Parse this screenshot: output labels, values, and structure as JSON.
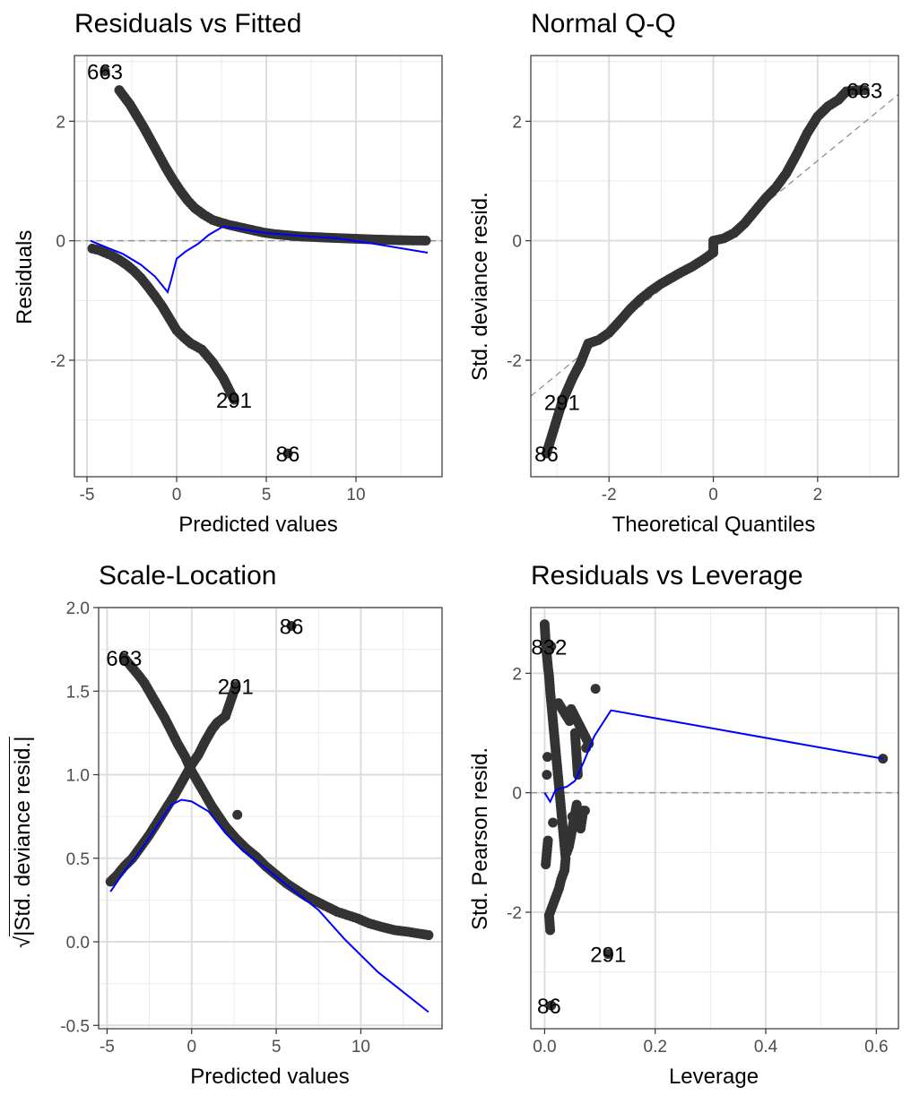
{
  "chart_data": [
    {
      "type": "scatter",
      "title": "Residuals vs Fitted",
      "xlabel": "Predicted values",
      "ylabel": "Residuals",
      "xlim": [
        -5.7,
        14.8
      ],
      "ylim": [
        -3.95,
        3.1
      ],
      "xticks": [
        -5,
        0,
        5,
        10
      ],
      "yticks": [
        -2,
        0,
        2
      ],
      "grid": true,
      "reference_line": {
        "type": "hline",
        "y": 0,
        "style": "dashed"
      },
      "series": [
        {
          "values": [
            [
              -4.7,
              -0.13
            ],
            [
              -4.3,
              -0.16
            ],
            [
              -4.0,
              -0.2
            ],
            [
              -3.6,
              -0.25
            ],
            [
              -3.2,
              -0.32
            ],
            [
              -2.8,
              -0.4
            ],
            [
              -2.4,
              -0.5
            ],
            [
              -2.0,
              -0.62
            ],
            [
              -1.6,
              -0.77
            ],
            [
              -1.2,
              -0.93
            ],
            [
              -0.8,
              -1.1
            ],
            [
              -0.4,
              -1.3
            ],
            [
              0.0,
              -1.5
            ],
            [
              0.4,
              -1.62
            ],
            [
              0.8,
              -1.72
            ],
            [
              1.4,
              -1.82
            ],
            [
              2.0,
              -2.03
            ],
            [
              2.6,
              -2.3
            ],
            [
              3.2,
              -2.66
            ],
            [
              6.2,
              -3.56
            ]
          ]
        },
        {
          "values": [
            [
              -3.2,
              2.52
            ],
            [
              -3.0,
              2.44
            ],
            [
              -2.6,
              2.28
            ],
            [
              -2.2,
              2.08
            ],
            [
              -1.8,
              1.88
            ],
            [
              -1.4,
              1.66
            ],
            [
              -1.0,
              1.44
            ],
            [
              -0.6,
              1.22
            ],
            [
              -0.2,
              1.02
            ],
            [
              0.2,
              0.84
            ],
            [
              0.6,
              0.68
            ],
            [
              1.0,
              0.55
            ],
            [
              1.5,
              0.44
            ],
            [
              2.0,
              0.35
            ],
            [
              2.5,
              0.3
            ],
            [
              3.0,
              0.26
            ],
            [
              3.6,
              0.22
            ],
            [
              4.2,
              0.18
            ],
            [
              4.8,
              0.14
            ],
            [
              5.5,
              0.11
            ],
            [
              6.2,
              0.09
            ],
            [
              7.0,
              0.07
            ],
            [
              7.8,
              0.06
            ],
            [
              8.6,
              0.05
            ],
            [
              9.4,
              0.04
            ],
            [
              10.2,
              0.03
            ],
            [
              11.2,
              0.02
            ],
            [
              12.3,
              0.01
            ],
            [
              13.2,
              0.005
            ],
            [
              13.9,
              0.003
            ],
            [
              -4.0,
              2.84
            ]
          ]
        },
        {
          "name": "smooth",
          "color": "#0000ff",
          "values": [
            [
              -4.8,
              0.0
            ],
            [
              -4.0,
              -0.1
            ],
            [
              -3.0,
              -0.22
            ],
            [
              -2.0,
              -0.4
            ],
            [
              -1.2,
              -0.6
            ],
            [
              -0.5,
              -0.86
            ],
            [
              -0.3,
              -0.65
            ],
            [
              0.0,
              -0.3
            ],
            [
              0.5,
              -0.18
            ],
            [
              1.2,
              -0.05
            ],
            [
              1.8,
              0.1
            ],
            [
              2.6,
              0.24
            ],
            [
              3.5,
              0.2
            ],
            [
              5.0,
              0.13
            ],
            [
              7.0,
              0.08
            ],
            [
              9.0,
              0.04
            ],
            [
              11.0,
              -0.05
            ],
            [
              14.0,
              -0.2
            ]
          ]
        }
      ],
      "labels": [
        {
          "text": "663",
          "x": -4.0,
          "y": 2.84
        },
        {
          "text": "291",
          "x": 3.2,
          "y": -2.66
        },
        {
          "text": "86",
          "x": 6.2,
          "y": -3.56
        }
      ]
    },
    {
      "type": "scatter",
      "title": "Normal Q-Q",
      "xlabel": "Theoretical Quantiles",
      "ylabel": "Std. deviance resid.",
      "xlim": [
        -3.5,
        3.55
      ],
      "ylim": [
        -3.95,
        3.1
      ],
      "xticks": [
        -2,
        0,
        2
      ],
      "yticks": [
        -2,
        0,
        2
      ],
      "grid": true,
      "reference_line": {
        "type": "abline",
        "points": [
          [
            -3.5,
            -2.6
          ],
          [
            3.55,
            2.45
          ]
        ],
        "style": "dashed"
      },
      "series": [
        {
          "values": [
            [
              -3.2,
              -3.56
            ],
            [
              -2.9,
              -2.7
            ],
            [
              -2.7,
              -2.3
            ],
            [
              -2.55,
              -2.05
            ],
            [
              -2.4,
              -1.72
            ],
            [
              -2.2,
              -1.66
            ],
            [
              -2.0,
              -1.54
            ],
            [
              -1.8,
              -1.35
            ],
            [
              -1.6,
              -1.15
            ],
            [
              -1.4,
              -0.98
            ],
            [
              -1.2,
              -0.84
            ],
            [
              -1.0,
              -0.72
            ],
            [
              -0.8,
              -0.62
            ],
            [
              -0.6,
              -0.52
            ],
            [
              -0.4,
              -0.43
            ],
            [
              -0.2,
              -0.32
            ],
            [
              0.0,
              -0.2
            ],
            [
              0.0,
              0.0
            ],
            [
              0.2,
              0.04
            ],
            [
              0.4,
              0.13
            ],
            [
              0.6,
              0.29
            ],
            [
              0.8,
              0.5
            ],
            [
              1.0,
              0.71
            ],
            [
              1.2,
              0.89
            ],
            [
              1.4,
              1.13
            ],
            [
              1.6,
              1.45
            ],
            [
              1.8,
              1.8
            ],
            [
              2.0,
              2.08
            ],
            [
              2.2,
              2.25
            ],
            [
              2.4,
              2.36
            ],
            [
              2.55,
              2.5
            ],
            [
              2.75,
              2.52
            ],
            [
              2.9,
              2.52
            ]
          ]
        }
      ],
      "labels": [
        {
          "text": "663",
          "x": 2.9,
          "y": 2.52
        },
        {
          "text": "291",
          "x": -2.9,
          "y": -2.7
        },
        {
          "text": "86",
          "x": -3.2,
          "y": -3.56
        }
      ]
    },
    {
      "type": "scatter",
      "title": "Scale-Location",
      "xlabel": "Predicted values",
      "ylabel_sqrt": "|Std. deviance resid.|",
      "xlim": [
        -5.5,
        14.8
      ],
      "ylim": [
        -0.52,
        2.0
      ],
      "xticks": [
        -5,
        0,
        5,
        10
      ],
      "yticks": [
        -0.5,
        0.0,
        0.5,
        1.0,
        1.5,
        2.0
      ],
      "grid": true,
      "series": [
        {
          "values": [
            [
              -4.8,
              0.36
            ],
            [
              -4.4,
              0.4
            ],
            [
              -4.0,
              0.45
            ],
            [
              -3.5,
              0.5
            ],
            [
              -3.0,
              0.57
            ],
            [
              -2.5,
              0.64
            ],
            [
              -2.0,
              0.72
            ],
            [
              -1.5,
              0.8
            ],
            [
              -1.0,
              0.88
            ],
            [
              -0.5,
              0.97
            ],
            [
              0.0,
              1.06
            ],
            [
              0.4,
              1.12
            ],
            [
              0.8,
              1.2
            ],
            [
              1.2,
              1.27
            ],
            [
              1.5,
              1.31
            ],
            [
              2.0,
              1.35
            ],
            [
              2.6,
              1.53
            ],
            [
              5.9,
              1.89
            ]
          ]
        },
        {
          "values": [
            [
              -4.0,
              1.7
            ],
            [
              -3.1,
              1.59
            ],
            [
              -2.8,
              1.55
            ],
            [
              -2.4,
              1.48
            ],
            [
              -2.0,
              1.41
            ],
            [
              -1.6,
              1.34
            ],
            [
              -1.2,
              1.26
            ],
            [
              -0.8,
              1.18
            ],
            [
              -0.4,
              1.11
            ],
            [
              0.0,
              1.02
            ],
            [
              0.4,
              0.95
            ],
            [
              0.8,
              0.88
            ],
            [
              1.2,
              0.81
            ],
            [
              1.6,
              0.75
            ],
            [
              2.0,
              0.69
            ],
            [
              2.6,
              0.62
            ],
            [
              3.2,
              0.56
            ],
            [
              3.8,
              0.51
            ],
            [
              4.4,
              0.45
            ],
            [
              5.0,
              0.4
            ],
            [
              5.6,
              0.35
            ],
            [
              6.2,
              0.31
            ],
            [
              6.8,
              0.27
            ],
            [
              7.4,
              0.24
            ],
            [
              8.0,
              0.21
            ],
            [
              8.6,
              0.18
            ],
            [
              9.2,
              0.16
            ],
            [
              9.8,
              0.14
            ],
            [
              10.5,
              0.11
            ],
            [
              11.2,
              0.09
            ],
            [
              12.0,
              0.07
            ],
            [
              12.8,
              0.06
            ],
            [
              13.4,
              0.05
            ],
            [
              14.0,
              0.04
            ],
            [
              2.7,
              0.76
            ]
          ]
        },
        {
          "name": "smooth",
          "color": "#0000ff",
          "values": [
            [
              -4.8,
              0.3
            ],
            [
              -4.0,
              0.42
            ],
            [
              -3.0,
              0.55
            ],
            [
              -2.0,
              0.7
            ],
            [
              -1.2,
              0.82
            ],
            [
              -0.6,
              0.85
            ],
            [
              0.0,
              0.84
            ],
            [
              1.0,
              0.78
            ],
            [
              2.0,
              0.65
            ],
            [
              3.0,
              0.55
            ],
            [
              4.5,
              0.43
            ],
            [
              6.0,
              0.31
            ],
            [
              7.5,
              0.19
            ],
            [
              9.0,
              0.02
            ],
            [
              11.0,
              -0.18
            ],
            [
              14.0,
              -0.42
            ]
          ]
        }
      ],
      "labels": [
        {
          "text": "86",
          "x": 5.9,
          "y": 1.89
        },
        {
          "text": "663",
          "x": -4.0,
          "y": 1.7
        },
        {
          "text": "291",
          "x": 2.6,
          "y": 1.53
        }
      ]
    },
    {
      "type": "scatter",
      "title": "Residuals vs Leverage",
      "xlabel": "Leverage",
      "ylabel": "Std. Pearson resid.",
      "xlim": [
        -0.025,
        0.64
      ],
      "ylim": [
        -3.95,
        3.1
      ],
      "xticks": [
        0.0,
        0.2,
        0.4,
        0.6
      ],
      "xtick_labels": [
        "0.0",
        "0.2",
        "0.4",
        "0.6"
      ],
      "yticks": [
        -2,
        0,
        2
      ],
      "grid": true,
      "reference_line": {
        "type": "hline",
        "y": 0,
        "style": "dashed"
      },
      "series": [
        {
          "values": [
            [
              0.0,
              2.82
            ],
            [
              0.002,
              2.5
            ],
            [
              0.004,
              2.3
            ],
            [
              0.006,
              2.1
            ],
            [
              0.008,
              1.95
            ],
            [
              0.01,
              1.7
            ],
            [
              0.012,
              1.5
            ],
            [
              0.014,
              1.3
            ],
            [
              0.016,
              1.1
            ],
            [
              0.018,
              0.9
            ],
            [
              0.02,
              0.7
            ],
            [
              0.022,
              0.5
            ],
            [
              0.024,
              0.3
            ],
            [
              0.026,
              0.1
            ],
            [
              0.028,
              -0.1
            ],
            [
              0.03,
              -0.3
            ],
            [
              0.032,
              -0.5
            ],
            [
              0.034,
              -0.7
            ],
            [
              0.036,
              -0.9
            ],
            [
              0.038,
              -1.1
            ],
            [
              0.036,
              -1.3
            ],
            [
              0.03,
              -1.45
            ],
            [
              0.026,
              -1.6
            ],
            [
              0.02,
              -1.75
            ],
            [
              0.014,
              -1.9
            ],
            [
              0.008,
              -2.05
            ],
            [
              0.01,
              -2.3
            ],
            [
              0.005,
              0.6
            ],
            [
              0.015,
              -0.5
            ],
            [
              0.025,
              1.5
            ],
            [
              0.045,
              1.2
            ],
            [
              0.05,
              -0.4
            ],
            [
              0.055,
              1.0
            ],
            [
              0.06,
              0.3
            ],
            [
              0.065,
              -0.6
            ],
            [
              0.07,
              -0.3
            ],
            [
              0.075,
              0.75
            ],
            [
              0.08,
              0.82
            ],
            [
              0.048,
              1.4
            ],
            [
              0.04,
              -1.0
            ],
            [
              0.044,
              -0.9
            ],
            [
              0.058,
              -0.2
            ],
            [
              0.092,
              1.74
            ],
            [
              0.073,
              -0.3
            ],
            [
              0.002,
              -1.2
            ],
            [
              0.006,
              -0.8
            ],
            [
              0.004,
              0.3
            ],
            [
              0.612,
              0.57
            ],
            [
              0.115,
              -2.7
            ],
            [
              0.012,
              -3.56
            ],
            [
              0.005,
              2.45
            ],
            [
              0.012,
              2.45
            ]
          ]
        },
        {
          "name": "smooth",
          "color": "#0000ff",
          "values": [
            [
              0.0,
              0.0
            ],
            [
              0.01,
              -0.15
            ],
            [
              0.02,
              0.05
            ],
            [
              0.04,
              0.1
            ],
            [
              0.055,
              0.2
            ],
            [
              0.07,
              0.5
            ],
            [
              0.09,
              0.95
            ],
            [
              0.12,
              1.38
            ],
            [
              0.612,
              0.57
            ]
          ]
        }
      ],
      "labels": [
        {
          "text": "832",
          "x": 0.008,
          "y": 2.45
        },
        {
          "text": "291",
          "x": 0.115,
          "y": -2.7
        },
        {
          "text": "86",
          "x": 0.008,
          "y": -3.56
        }
      ]
    }
  ]
}
